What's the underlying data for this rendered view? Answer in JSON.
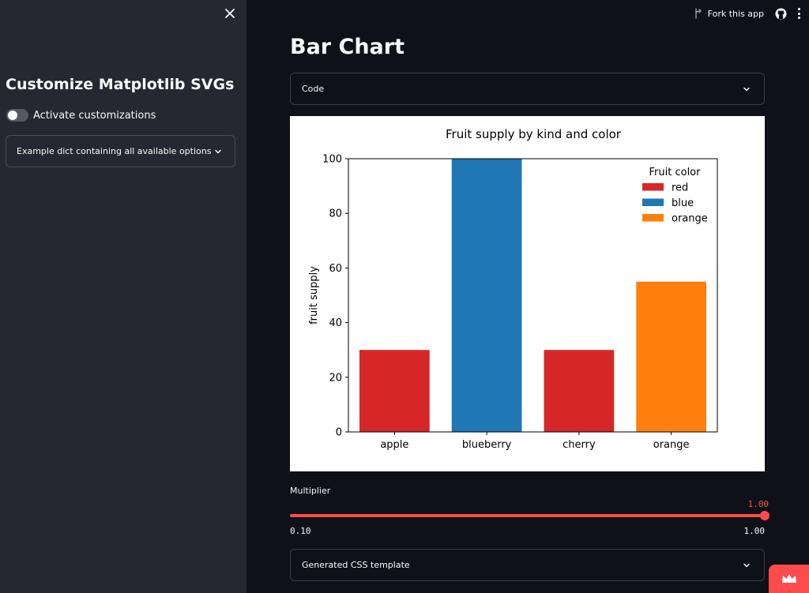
{
  "sidebar": {
    "title": "Customize Matplotlib SVGs",
    "toggle_label": "Activate customizations",
    "toggle_on": false,
    "expander_label": "Example dict containing all available options"
  },
  "header": {
    "fork_label": "Fork this app"
  },
  "main": {
    "title": "Bar Chart",
    "code_expander_label": "Code",
    "css_expander_label": "Generated CSS template"
  },
  "slider": {
    "label": "Multiplier",
    "value": "1.00",
    "min": "0.10",
    "max": "1.00",
    "fraction": 1.0
  },
  "colors": {
    "accent": "#ff4b4b",
    "sidebar_bg": "#262730",
    "main_bg": "#0e1117"
  },
  "chart_data": {
    "type": "bar",
    "title": "Fruit supply by kind and color",
    "xlabel": "",
    "ylabel": "fruit supply",
    "categories": [
      "apple",
      "blueberry",
      "cherry",
      "orange"
    ],
    "values": [
      30,
      100,
      30,
      55
    ],
    "bar_colors": [
      "#d62728",
      "#1f77b4",
      "#d62728",
      "#ff7f0e"
    ],
    "ylim": [
      0,
      100
    ],
    "yticks": [
      "0",
      "20",
      "40",
      "60",
      "80",
      "100"
    ],
    "grid": false,
    "legend": {
      "title": "Fruit color",
      "placement": "top-right",
      "entries": [
        {
          "label": "red",
          "color": "#d62728"
        },
        {
          "label": "blue",
          "color": "#1f77b4"
        },
        {
          "label": "orange",
          "color": "#ff7f0e"
        }
      ]
    }
  }
}
